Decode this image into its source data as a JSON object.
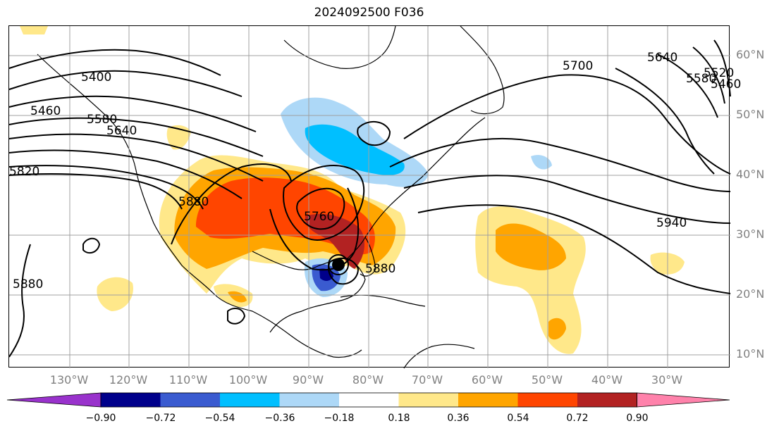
{
  "title": "2024092500 F036",
  "lat_labels": [
    "60°N",
    "50°N",
    "40°N",
    "30°N",
    "20°N",
    "10°N"
  ],
  "lon_labels": [
    "130°W",
    "120°W",
    "110°W",
    "100°W",
    "90°W",
    "80°W",
    "70°W",
    "60°W",
    "50°W",
    "40°W",
    "30°W"
  ],
  "contour_labels": [
    "5400",
    "5460",
    "5520",
    "5580",
    "5640",
    "5700",
    "5760",
    "5820",
    "5880",
    "5940"
  ],
  "contour_labels_shown": {
    "c5400": "5400",
    "c5460a": "5460",
    "c5580a": "5580",
    "c5640a": "5640",
    "c5820": "5820",
    "c5880a": "5880",
    "c5880b": "5880",
    "c5760": "5760",
    "c5700": "5700",
    "c5640b": "5640",
    "c5580b": "5580",
    "c5520": "5520",
    "c5460b": "5460",
    "c5940": "5940",
    "c5880c": "5880"
  },
  "colorbar": {
    "ticks": [
      "−0.90",
      "−0.72",
      "−0.54",
      "−0.36",
      "−0.18",
      "0.18",
      "0.36",
      "0.54",
      "0.72",
      "0.90"
    ],
    "colors": [
      "#9932cc",
      "#00008b",
      "#3a5bd0",
      "#00bfff",
      "#add8f7",
      "#ffffff",
      "#ffe88a",
      "#ffa500",
      "#ff4500",
      "#b22222",
      "#ff82ab"
    ]
  },
  "chart_data": {
    "type": "map",
    "title": "2024092500 F036",
    "description_fields": {
      "lat_range": [
        8,
        65
      ],
      "lon_range": [
        -140,
        -20
      ],
      "contour_field": "geopotential height",
      "contour_values": [
        5400,
        5460,
        5520,
        5580,
        5640,
        5700,
        5760,
        5820,
        5880,
        5940
      ],
      "shaded_levels": [
        -0.9,
        -0.72,
        -0.54,
        -0.36,
        -0.18,
        0.18,
        0.36,
        0.54,
        0.72,
        0.9
      ]
    }
  }
}
